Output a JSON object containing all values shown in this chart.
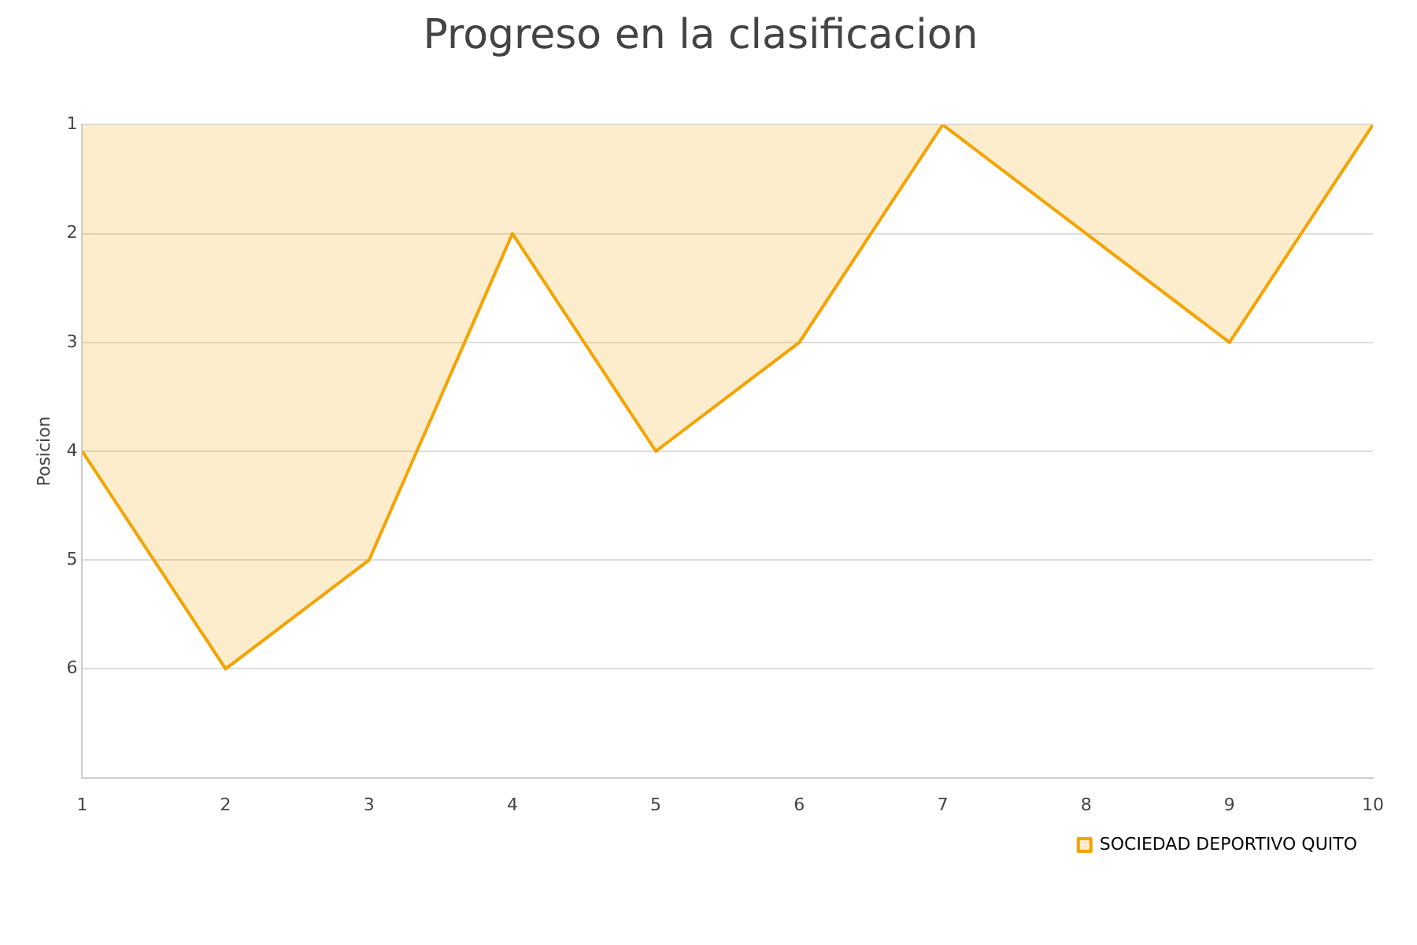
{
  "chart_data": {
    "type": "area",
    "title": "Progreso en la clasificacion",
    "ylabel": "Posicion",
    "x": [
      1,
      2,
      3,
      4,
      5,
      6,
      7,
      8,
      9,
      10
    ],
    "series": [
      {
        "name": "SOCIEDAD DEPORTIVO QUITO",
        "color": "#f5a300",
        "values": [
          4,
          6,
          5,
          2,
          4,
          3,
          1,
          2,
          3,
          1
        ]
      }
    ],
    "xlim": [
      1,
      10
    ],
    "xticks": [
      1,
      2,
      3,
      4,
      5,
      6,
      7,
      8,
      9,
      10
    ],
    "ylim": [
      7,
      1
    ],
    "yticks": [
      1,
      2,
      3,
      4,
      5,
      6
    ],
    "grid": "y",
    "legend": "bottom right",
    "marker": "none",
    "line_style": "solid"
  }
}
